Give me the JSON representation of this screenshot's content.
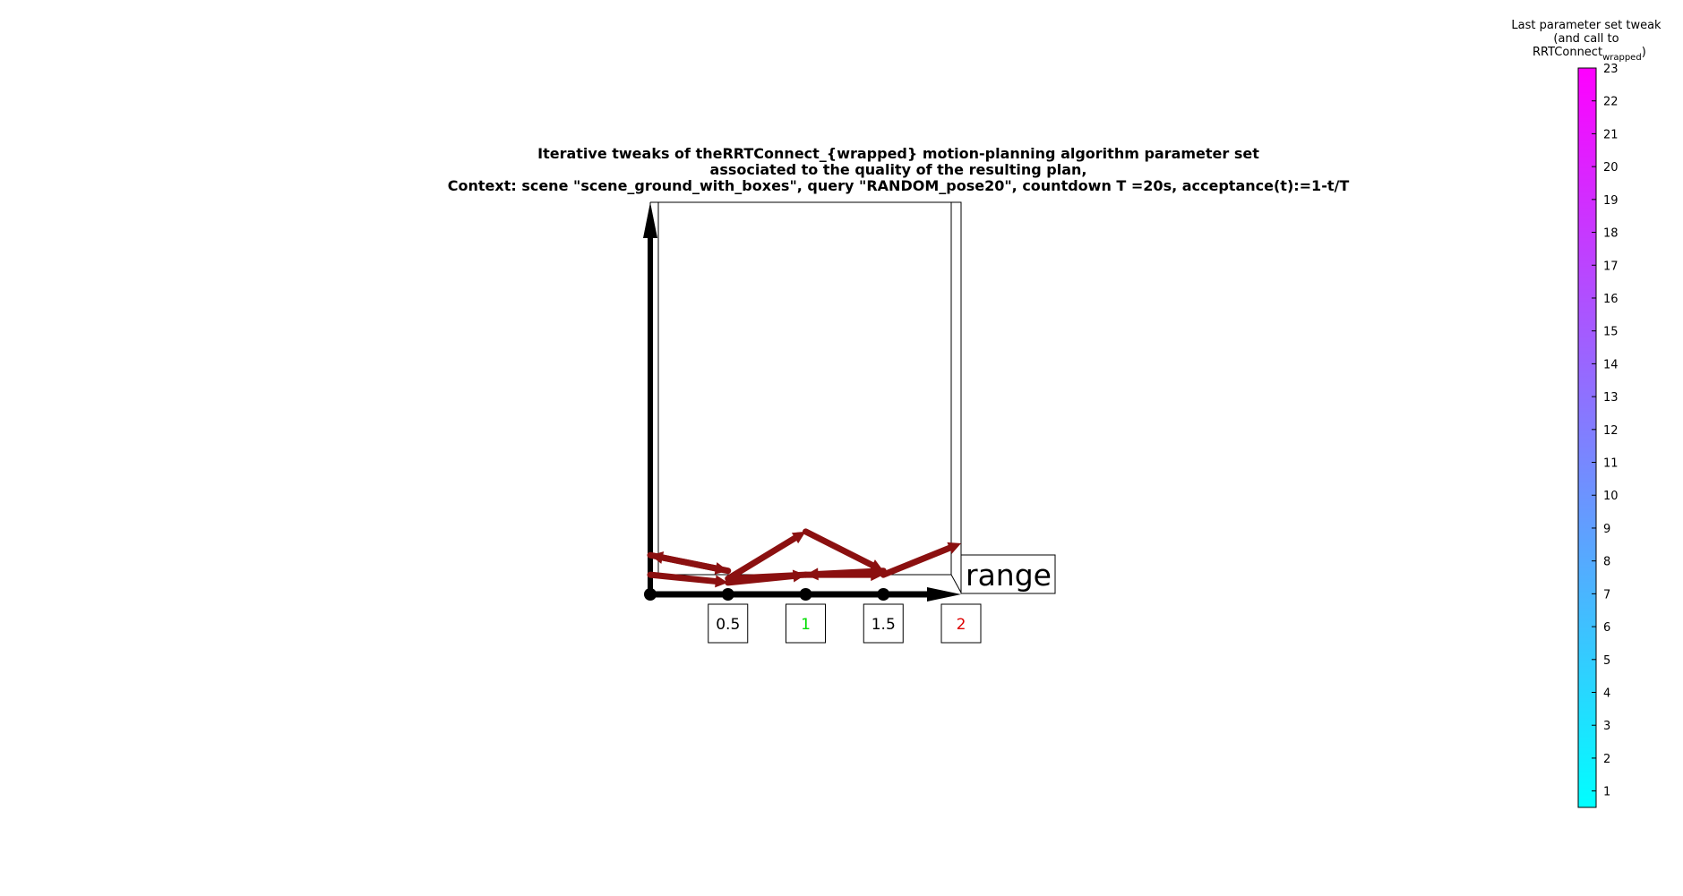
{
  "chart_data": {
    "type": "line",
    "title": [
      "Iterative tweaks of theRRTConnect_{wrapped} motion-planning algorithm parameter set",
      "associated to the quality of the resulting plan,",
      "Context: scene \"scene_ground_with_boxes\", query \"RANDOM_pose20\", countdown T =20s, acceptance(t):=1-t/T"
    ],
    "x_axis_label": "range",
    "x_ticks": [
      {
        "value": 0.5,
        "label": "0.5",
        "color": "#000000"
      },
      {
        "value": 1,
        "label": "1",
        "color": "#00dd00"
      },
      {
        "value": 1.5,
        "label": "1.5",
        "color": "#000000"
      },
      {
        "value": 2,
        "label": "2",
        "color": "#dd0000"
      }
    ],
    "xlim": [
      0,
      2
    ],
    "ylim": [
      0,
      1
    ],
    "arrow_color": "#8b1010",
    "arrows": [
      {
        "from": [
          0.0,
          0.1
        ],
        "to": [
          0.5,
          0.06
        ]
      },
      {
        "from": [
          0.5,
          0.06
        ],
        "to": [
          0.0,
          0.1
        ]
      },
      {
        "from": [
          0.0,
          0.05
        ],
        "to": [
          0.5,
          0.03
        ]
      },
      {
        "from": [
          0.5,
          0.03
        ],
        "to": [
          1.0,
          0.05
        ]
      },
      {
        "from": [
          1.0,
          0.05
        ],
        "to": [
          0.5,
          0.04
        ]
      },
      {
        "from": [
          0.5,
          0.04
        ],
        "to": [
          1.0,
          0.16
        ]
      },
      {
        "from": [
          1.0,
          0.16
        ],
        "to": [
          1.5,
          0.06
        ]
      },
      {
        "from": [
          1.5,
          0.06
        ],
        "to": [
          1.0,
          0.05
        ]
      },
      {
        "from": [
          1.0,
          0.05
        ],
        "to": [
          1.5,
          0.05
        ]
      },
      {
        "from": [
          1.5,
          0.05
        ],
        "to": [
          2.0,
          0.13
        ]
      }
    ],
    "colorbar": {
      "title": [
        "Last parameter set tweak",
        "(and call to",
        "RRTConnect"
      ],
      "title_subscript": "wrapped",
      "title_close": ")",
      "min": 0.5,
      "max": 23,
      "ticks": [
        "1",
        "2",
        "3",
        "4",
        "5",
        "6",
        "7",
        "8",
        "9",
        "10",
        "11",
        "12",
        "13",
        "14",
        "15",
        "16",
        "17",
        "18",
        "19",
        "20",
        "21",
        "22",
        "23"
      ],
      "color_low": "#00ffff",
      "color_high": "#ff00ff"
    }
  }
}
